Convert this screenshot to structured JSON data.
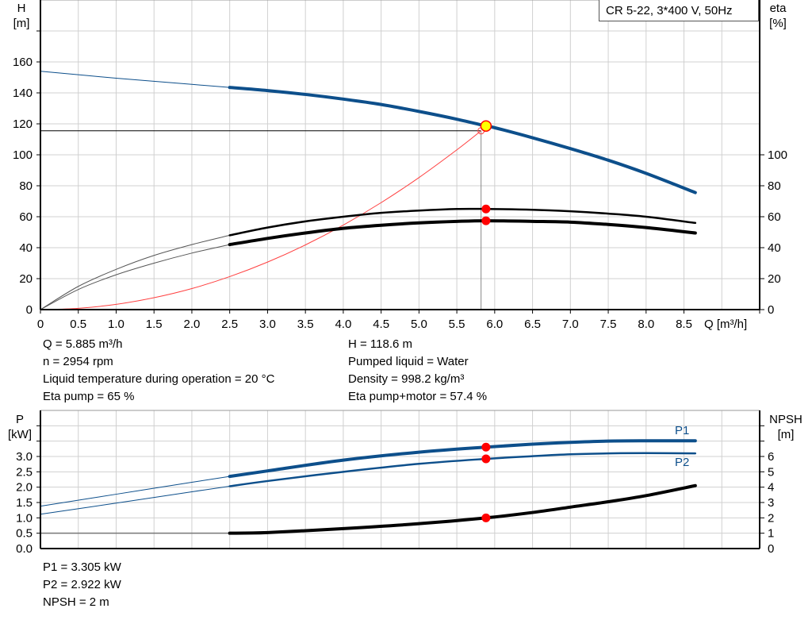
{
  "title": "CR 5-22, 3*400 V, 50Hz",
  "colors": {
    "head": "#0d4f8b",
    "power": "#0d4f8b",
    "efficiency": "#000000",
    "npsh": "#000000",
    "system": "#ff4040",
    "duty_point_fill": "#ffff00",
    "duty_point_stroke": "#ff0000",
    "marker": "#ff0000",
    "grid": "#d0d0d0"
  },
  "chart_data": [
    {
      "type": "line",
      "xlabel": "Q [m³/h]",
      "ylabel_left": {
        "name": "H",
        "unit": "[m]"
      },
      "ylabel_right": {
        "name": "eta",
        "unit": "[%]"
      },
      "xlim": [
        0,
        9.5
      ],
      "ylim": [
        0,
        200
      ],
      "x_ticks": [
        "0",
        "0.5",
        "1.0",
        "1.5",
        "2.0",
        "2.5",
        "3.0",
        "3.5",
        "4.0",
        "4.5",
        "5.0",
        "5.5",
        "6.0",
        "6.5",
        "7.0",
        "7.5",
        "8.0",
        "8.5"
      ],
      "y_ticks_left": [
        0,
        20,
        40,
        60,
        80,
        100,
        120,
        140,
        160
      ],
      "y_ticks_right": [
        0,
        20,
        40,
        60,
        80,
        100
      ],
      "grid": true,
      "series": [
        {
          "id": "H",
          "thin_until": 2.5,
          "points": [
            [
              0,
              154
            ],
            [
              1,
              149.5
            ],
            [
              2,
              145.5
            ],
            [
              2.5,
              143.5
            ],
            [
              3,
              141.5
            ],
            [
              3.5,
              139
            ],
            [
              4,
              136
            ],
            [
              4.5,
              132.5
            ],
            [
              5,
              128
            ],
            [
              5.5,
              123
            ],
            [
              5.885,
              118.6
            ],
            [
              6,
              117.5
            ],
            [
              6.5,
              111
            ],
            [
              7,
              104
            ],
            [
              7.5,
              96.5
            ],
            [
              8,
              88
            ],
            [
              8.65,
              75.6
            ]
          ]
        },
        {
          "id": "eta_pump",
          "thin_until": 2.5,
          "points": [
            [
              0,
              0
            ],
            [
              0.5,
              15
            ],
            [
              1,
              26
            ],
            [
              1.5,
              35
            ],
            [
              2,
              42
            ],
            [
              2.5,
              48
            ],
            [
              3,
              53
            ],
            [
              3.5,
              57
            ],
            [
              4,
              60
            ],
            [
              4.5,
              62.5
            ],
            [
              5,
              64
            ],
            [
              5.5,
              65
            ],
            [
              5.885,
              65
            ],
            [
              6.5,
              64.5
            ],
            [
              7,
              63.5
            ],
            [
              7.5,
              62
            ],
            [
              8,
              60
            ],
            [
              8.65,
              56
            ]
          ]
        },
        {
          "id": "eta_pump_motor",
          "thin_until": 2.5,
          "points": [
            [
              0,
              0
            ],
            [
              0.5,
              13
            ],
            [
              1,
              22.5
            ],
            [
              1.5,
              30
            ],
            [
              2,
              36.5
            ],
            [
              2.5,
              42
            ],
            [
              3,
              46
            ],
            [
              3.5,
              49.5
            ],
            [
              4,
              52.5
            ],
            [
              4.5,
              54.5
            ],
            [
              5,
              56
            ],
            [
              5.5,
              57
            ],
            [
              5.885,
              57.4
            ],
            [
              6.5,
              57
            ],
            [
              7,
              56.5
            ],
            [
              7.5,
              55
            ],
            [
              8,
              53
            ],
            [
              8.65,
              49.5
            ]
          ]
        },
        {
          "id": "system_curve",
          "points": [
            [
              0,
              0
            ],
            [
              0.5,
              0.85
            ],
            [
              1,
              3.4
            ],
            [
              1.5,
              7.7
            ],
            [
              2,
              13.6
            ],
            [
              2.5,
              21.3
            ],
            [
              3,
              30.7
            ],
            [
              3.5,
              41.8
            ],
            [
              4,
              54.6
            ],
            [
              4.5,
              69.1
            ],
            [
              5,
              85.3
            ],
            [
              5.5,
              103.2
            ],
            [
              5.82,
              115.5
            ]
          ]
        }
      ],
      "duty_point": {
        "Q": 5.885,
        "H": 118.6
      },
      "system_end": {
        "Q": 5.82,
        "H": 115.5
      },
      "markers": [
        {
          "Q": 5.885,
          "eta": 65
        },
        {
          "Q": 5.885,
          "eta": 57.4
        }
      ]
    },
    {
      "type": "line",
      "ylabel_left": {
        "name": "P",
        "unit": "[kW]"
      },
      "ylabel_right": {
        "name": "NPSH",
        "unit": "[m]"
      },
      "xlim": [
        0,
        9.5
      ],
      "ylim_left": [
        0,
        4.5
      ],
      "ylim_right": [
        0,
        9
      ],
      "y_ticks_left": [
        "0.0",
        "0.5",
        "1.0",
        "1.5",
        "2.0",
        "2.5",
        "3.0"
      ],
      "y_ticks_right": [
        "0",
        "1",
        "2",
        "3",
        "4",
        "5",
        "6"
      ],
      "grid": true,
      "series": [
        {
          "id": "P1",
          "name": "P1",
          "axis": "left",
          "thin_until": 2.5,
          "points": [
            [
              0,
              1.38
            ],
            [
              1,
              1.77
            ],
            [
              2,
              2.16
            ],
            [
              2.5,
              2.35
            ],
            [
              3,
              2.53
            ],
            [
              4,
              2.88
            ],
            [
              5,
              3.14
            ],
            [
              5.885,
              3.305
            ],
            [
              6.5,
              3.4
            ],
            [
              7,
              3.46
            ],
            [
              7.5,
              3.5
            ],
            [
              8,
              3.51
            ],
            [
              8.65,
              3.51
            ]
          ]
        },
        {
          "id": "P2",
          "name": "P2",
          "axis": "left",
          "thin_until": 2.5,
          "points": [
            [
              0,
              1.12
            ],
            [
              1,
              1.48
            ],
            [
              2,
              1.85
            ],
            [
              2.5,
              2.03
            ],
            [
              3,
              2.2
            ],
            [
              4,
              2.5
            ],
            [
              5,
              2.76
            ],
            [
              5.885,
              2.922
            ],
            [
              6.5,
              3.01
            ],
            [
              7,
              3.07
            ],
            [
              7.5,
              3.1
            ],
            [
              8,
              3.11
            ],
            [
              8.65,
              3.1
            ]
          ]
        },
        {
          "id": "NPSH",
          "axis": "right",
          "thin_until": 2.5,
          "points": [
            [
              0,
              1
            ],
            [
              2.5,
              1
            ],
            [
              3,
              1.04
            ],
            [
              4,
              1.3
            ],
            [
              5,
              1.62
            ],
            [
              5.885,
              2
            ],
            [
              6.5,
              2.35
            ],
            [
              7,
              2.7
            ],
            [
              7.5,
              3.05
            ],
            [
              8,
              3.45
            ],
            [
              8.65,
              4.1
            ]
          ]
        }
      ],
      "markers": [
        {
          "Q": 5.885,
          "P": 3.305
        },
        {
          "Q": 5.885,
          "P": 2.922
        },
        {
          "Q": 5.885,
          "NPSH": 2
        }
      ]
    }
  ],
  "info_top_left": [
    "Q = 5.885 m³/h",
    "n = 2954 rpm",
    "Liquid temperature during operation = 20 °C",
    "Eta pump = 65 %"
  ],
  "info_top_right": [
    "H = 118.6 m",
    "Pumped liquid = Water",
    "Density = 998.2 kg/m³",
    "Eta pump+motor = 57.4 %"
  ],
  "info_bottom": [
    "P1 = 3.305 kW",
    "P2 = 2.922 kW",
    "NPSH = 2 m"
  ]
}
